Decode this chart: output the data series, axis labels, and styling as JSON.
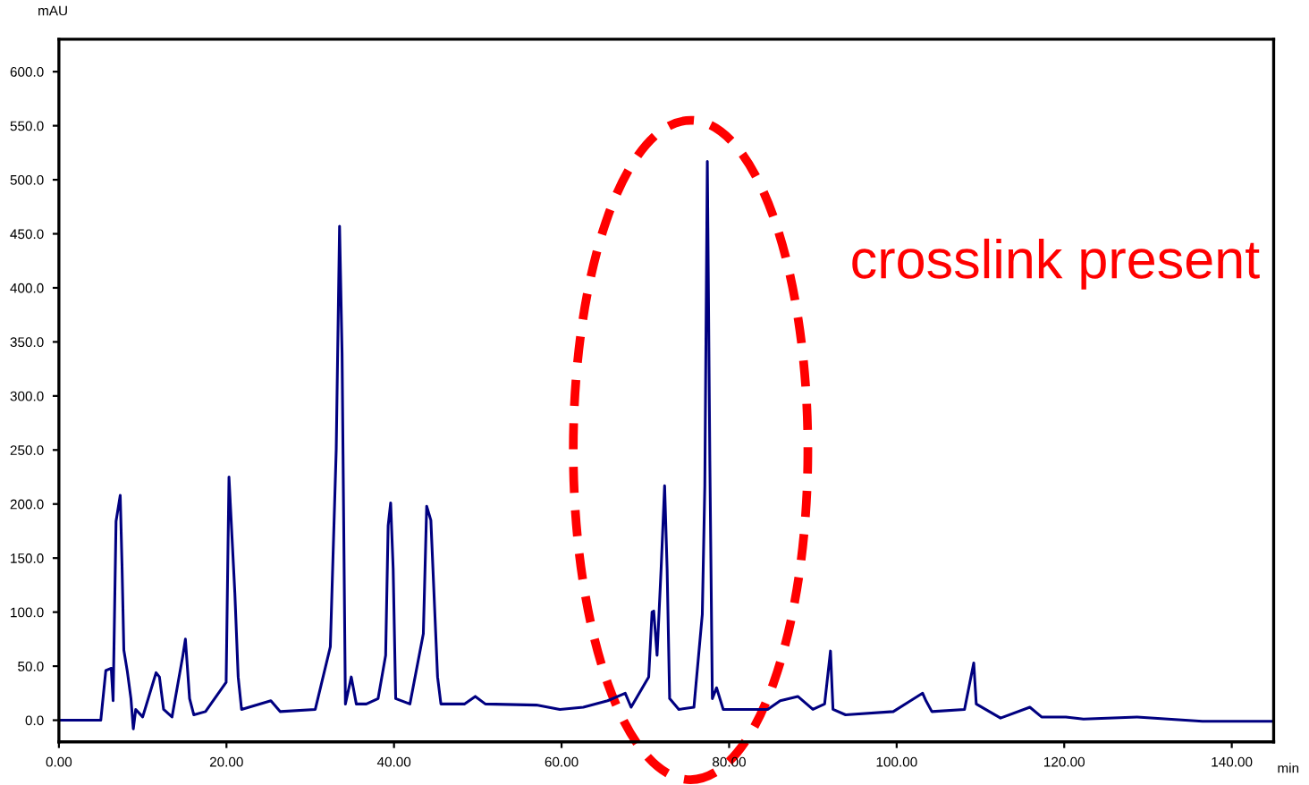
{
  "chart_data": {
    "type": "line",
    "xlabel": "min",
    "ylabel": "mAU",
    "annotations": [
      "crosslink present"
    ],
    "series": [
      {
        "color": "#000080",
        "x": [
          0,
          5.0,
          5.6,
          6.25,
          6.47,
          6.82,
          7.32,
          7.53,
          7.75,
          8.17,
          8.6,
          8.88,
          9.17,
          10.0,
          11.6,
          12.0,
          12.5,
          13.5,
          14.8,
          15.1,
          15.6,
          16.1,
          17.5,
          19.96,
          20.3,
          21.0,
          21.4,
          21.8,
          25.3,
          26.4,
          30.6,
          32.4,
          33.1,
          33.5,
          33.8,
          34.2,
          34.9,
          35.5,
          36.7,
          38.1,
          39.0,
          39.3,
          39.6,
          39.9,
          40.2,
          41.9,
          43.5,
          43.9,
          44.4,
          45.2,
          45.6,
          48.4,
          49.7,
          50.9,
          57.0,
          59.8,
          62.6,
          65.5,
          67.6,
          68.3,
          70.4,
          70.8,
          71.0,
          71.4,
          71.9,
          72.3,
          72.6,
          72.9,
          74.0,
          75.8,
          76.8,
          77.1,
          77.4,
          77.7,
          78.0,
          78.5,
          79.3,
          84.6,
          86.1,
          88.2,
          90.0,
          91.4,
          92.1,
          92.4,
          93.9,
          99.6,
          103.1,
          103.5,
          104.2,
          108.1,
          109.2,
          109.5,
          112.4,
          115.9,
          117.3,
          120.2,
          122.3,
          128.7,
          136.5,
          140.8,
          145
        ],
        "values": [
          0,
          0,
          46,
          48,
          18,
          184,
          208,
          145,
          65,
          45,
          20,
          -8,
          10,
          3,
          44,
          40,
          10,
          3,
          60,
          75,
          20,
          5,
          8,
          35,
          225,
          118,
          40,
          10,
          18,
          8,
          10,
          68,
          250,
          457,
          340,
          15,
          40,
          15,
          15,
          20,
          60,
          180,
          201,
          140,
          20,
          15,
          80,
          198,
          185,
          40,
          15,
          15,
          22,
          15,
          14,
          10,
          12,
          18,
          25,
          12,
          40,
          100,
          101,
          60,
          143,
          217,
          140,
          20,
          10,
          12,
          98,
          217,
          517,
          240,
          20,
          30,
          10,
          10,
          18,
          22,
          10,
          15,
          64,
          10,
          5,
          8,
          25,
          18,
          8,
          10,
          53,
          15,
          2,
          12,
          3,
          3,
          1,
          3,
          -1,
          -1,
          -1
        ]
      }
    ],
    "xlim": [
      0,
      145
    ],
    "ylim": [
      -20,
      630
    ],
    "xticks": [
      {
        "value": 0,
        "label": "0.00"
      },
      {
        "value": 20,
        "label": "20.00"
      },
      {
        "value": 40,
        "label": "40.00"
      },
      {
        "value": 60,
        "label": "60.00"
      },
      {
        "value": 80,
        "label": "80.00"
      },
      {
        "value": 100,
        "label": "100.00"
      },
      {
        "value": 120,
        "label": "120.00"
      },
      {
        "value": 140,
        "label": "140.00"
      }
    ],
    "yticks": [
      {
        "value": 0,
        "label": "0.0"
      },
      {
        "value": 50,
        "label": "50.0"
      },
      {
        "value": 100,
        "label": "100.0"
      },
      {
        "value": 150,
        "label": "150.0"
      },
      {
        "value": 200,
        "label": "200.0"
      },
      {
        "value": 250,
        "label": "250.0"
      },
      {
        "value": 300,
        "label": "300.0"
      },
      {
        "value": 350,
        "label": "350.0"
      },
      {
        "value": 400,
        "label": "400.0"
      },
      {
        "value": 450,
        "label": "450.0"
      },
      {
        "value": 500,
        "label": "500.0"
      },
      {
        "value": 550,
        "label": "550.0"
      },
      {
        "value": 600,
        "label": "600.0"
      }
    ],
    "grid": false,
    "marker": "none",
    "line_style": "solid"
  }
}
